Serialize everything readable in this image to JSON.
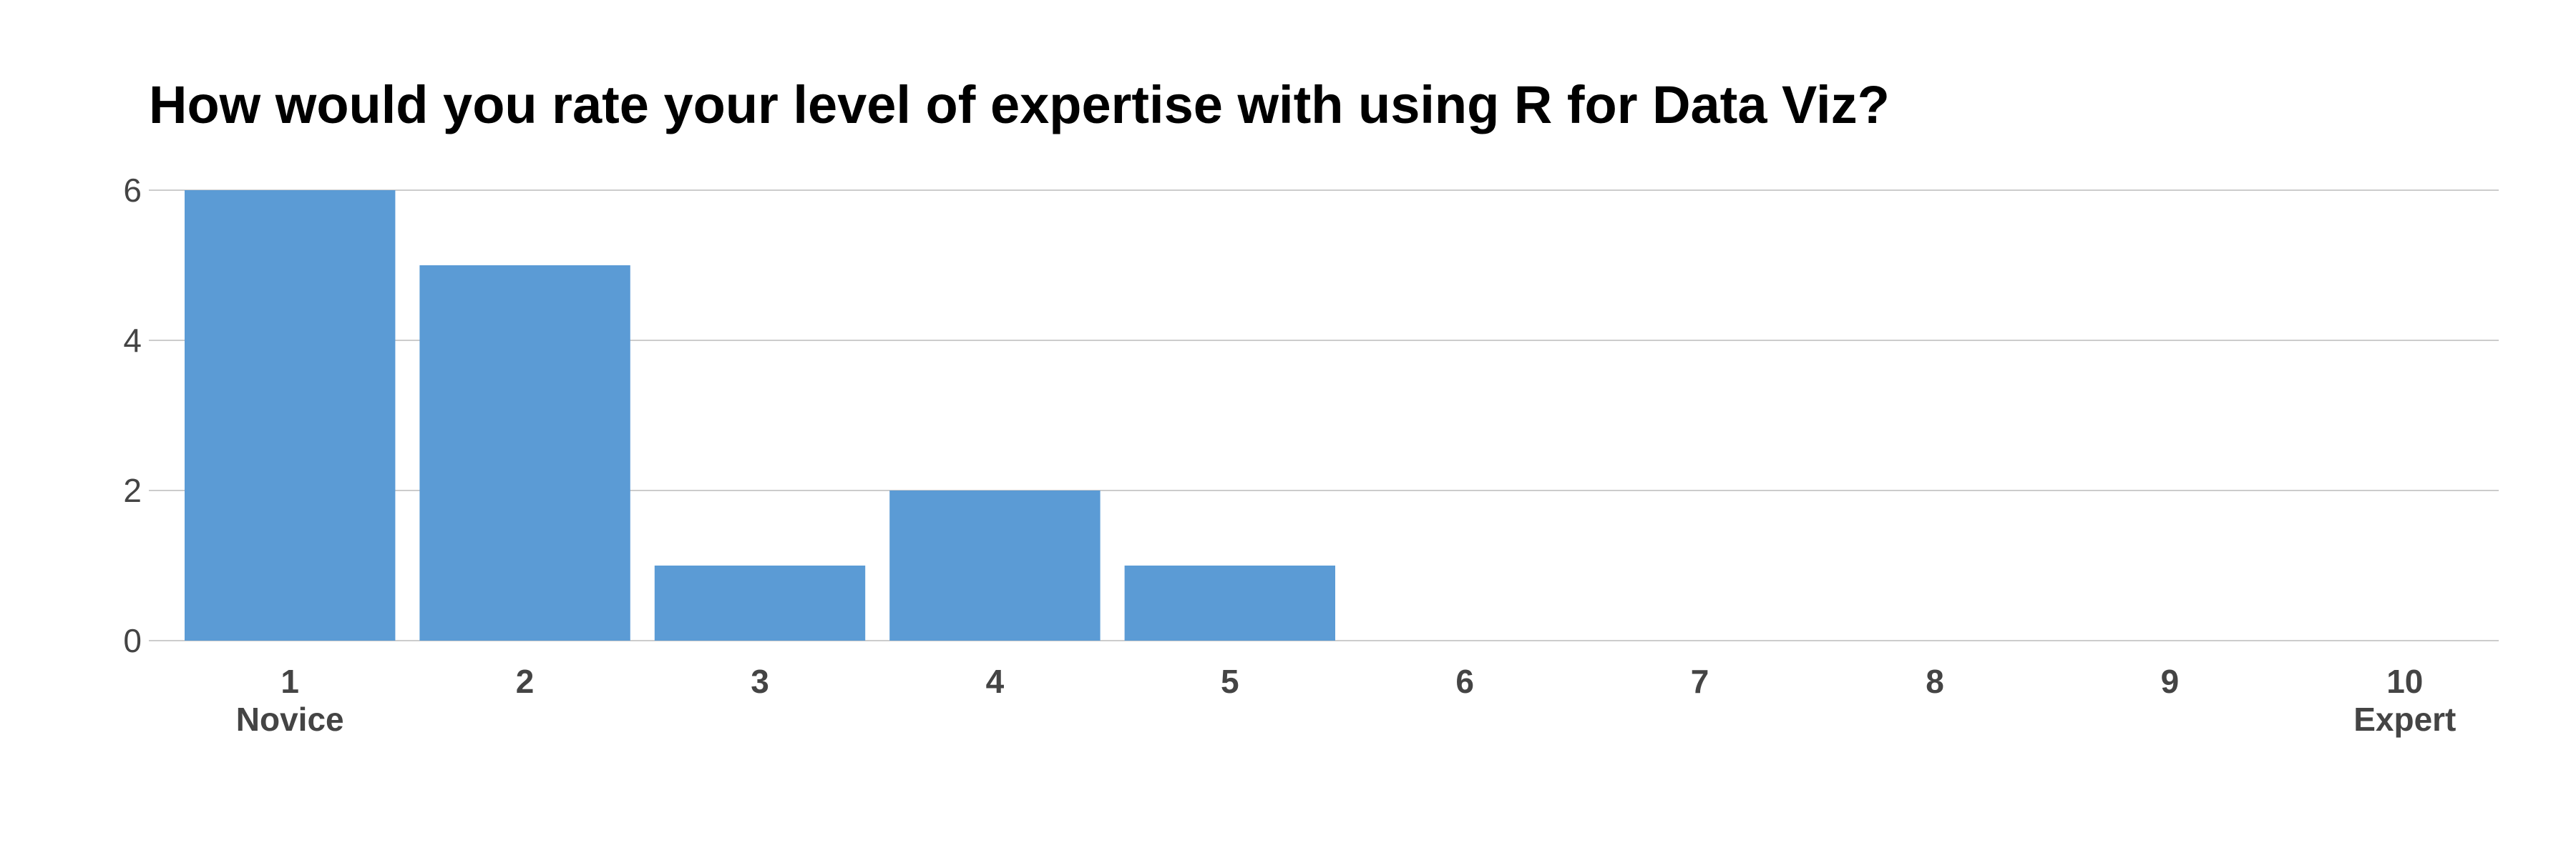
{
  "chart_data": {
    "type": "bar",
    "title": "How would you rate your level of expertise with using R for Data Viz?",
    "xlabel": "",
    "ylabel": "",
    "categories": [
      "1",
      "2",
      "3",
      "4",
      "5",
      "6",
      "7",
      "8",
      "9",
      "10"
    ],
    "category_sublabels": [
      "Novice",
      "",
      "",
      "",
      "",
      "",
      "",
      "",
      "",
      "Expert"
    ],
    "values": [
      6,
      5,
      1,
      2,
      1,
      0,
      0,
      0,
      0,
      0
    ],
    "ylim": [
      0,
      6
    ],
    "yticks": [
      0,
      2,
      4,
      6
    ],
    "grid": true,
    "legend": "none",
    "colors": {
      "bar": "#5b9bd5",
      "grid": "#cccccc",
      "tick_text": "#444444",
      "title_text": "#000000"
    }
  }
}
